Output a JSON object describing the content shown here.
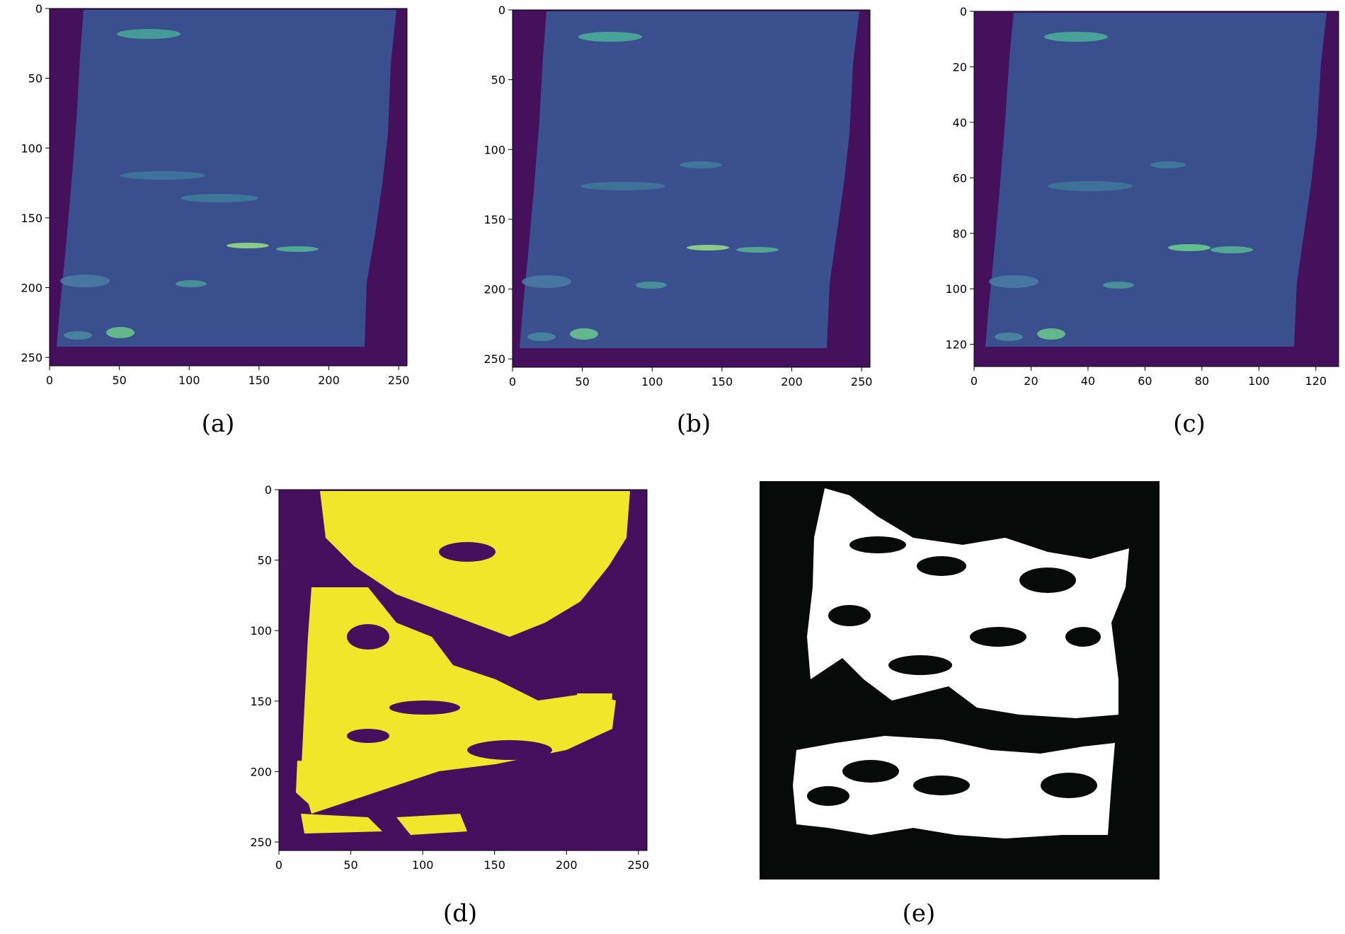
{
  "figure": {
    "panels": [
      {
        "id": "a",
        "caption": "(a)",
        "kind": "heatmap",
        "colormap": "viridis",
        "xticks": [
          "0",
          "50",
          "100",
          "150",
          "200",
          "250"
        ],
        "yticks": [
          "0",
          "50",
          "100",
          "150",
          "200",
          "250"
        ],
        "xlim": [
          0,
          256
        ],
        "ylim": [
          256,
          0
        ]
      },
      {
        "id": "b",
        "caption": "(b)",
        "kind": "heatmap",
        "colormap": "viridis",
        "xticks": [
          "0",
          "50",
          "100",
          "150",
          "200",
          "250"
        ],
        "yticks": [
          "0",
          "50",
          "100",
          "150",
          "200",
          "250"
        ],
        "xlim": [
          0,
          256
        ],
        "ylim": [
          256,
          0
        ]
      },
      {
        "id": "c",
        "caption": "(c)",
        "kind": "heatmap",
        "colormap": "viridis",
        "xticks": [
          "0",
          "20",
          "40",
          "60",
          "80",
          "100",
          "120"
        ],
        "yticks": [
          "0",
          "20",
          "40",
          "60",
          "80",
          "100",
          "120"
        ],
        "xlim": [
          0,
          128
        ],
        "ylim": [
          128,
          0
        ]
      },
      {
        "id": "d",
        "caption": "(d)",
        "kind": "binary-mask",
        "colors": {
          "background": "#46105e",
          "foreground": "#f2e62a"
        },
        "xticks": [
          "0",
          "50",
          "100",
          "150",
          "200",
          "250"
        ],
        "yticks": [
          "0",
          "50",
          "100",
          "150",
          "200",
          "250"
        ],
        "xlim": [
          0,
          256
        ],
        "ylim": [
          256,
          0
        ]
      },
      {
        "id": "e",
        "caption": "(e)",
        "kind": "binary-mask",
        "colors": {
          "background": "#060a08",
          "foreground": "#ffffff"
        },
        "axes": "none"
      }
    ]
  }
}
